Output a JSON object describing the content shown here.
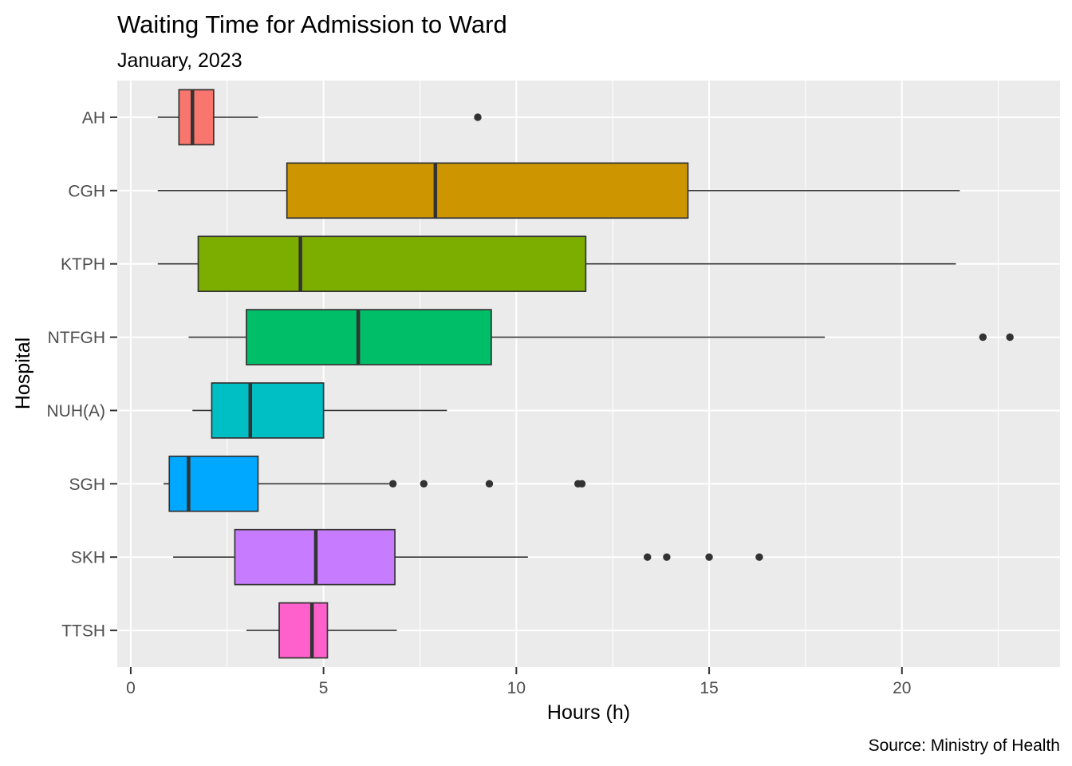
{
  "chart_data": {
    "type": "boxplot",
    "orientation": "horizontal",
    "title": "Waiting Time for Admission to Ward",
    "subtitle": "January, 2023",
    "xlabel": "Hours (h)",
    "ylabel": "Hospital",
    "caption": "Source: Ministry of Health",
    "xlim": [
      -0.35,
      24.1
    ],
    "xticks": [
      0,
      5,
      10,
      15,
      20
    ],
    "grid": true,
    "legend": "none",
    "categories": [
      "AH",
      "CGH",
      "KTPH",
      "NTFGH",
      "NUH(A)",
      "SGH",
      "SKH",
      "TTSH"
    ],
    "boxes": [
      {
        "name": "AH",
        "color": "#F8766D",
        "whisker_low": 0.7,
        "q1": 1.25,
        "median": 1.6,
        "q3": 2.15,
        "whisker_high": 3.3,
        "outliers": [
          9.0
        ]
      },
      {
        "name": "CGH",
        "color": "#CD9600",
        "whisker_low": 0.7,
        "q1": 4.05,
        "median": 7.9,
        "q3": 14.45,
        "whisker_high": 21.5,
        "outliers": []
      },
      {
        "name": "KTPH",
        "color": "#7CAE00",
        "whisker_low": 0.7,
        "q1": 1.75,
        "median": 4.4,
        "q3": 11.8,
        "whisker_high": 21.4,
        "outliers": []
      },
      {
        "name": "NTFGH",
        "color": "#00BE67",
        "whisker_low": 1.5,
        "q1": 3.0,
        "median": 5.9,
        "q3": 9.35,
        "whisker_high": 18.0,
        "outliers": [
          22.1,
          22.8
        ]
      },
      {
        "name": "NUH(A)",
        "color": "#00BFC4",
        "whisker_low": 1.6,
        "q1": 2.1,
        "median": 3.1,
        "q3": 5.0,
        "whisker_high": 8.2,
        "outliers": []
      },
      {
        "name": "SGH",
        "color": "#00A9FF",
        "whisker_low": 0.85,
        "q1": 1.0,
        "median": 1.5,
        "q3": 3.3,
        "whisker_high": 6.7,
        "outliers": [
          6.8,
          7.6,
          9.3,
          11.6,
          11.7
        ]
      },
      {
        "name": "SKH",
        "color": "#C77CFF",
        "whisker_low": 1.1,
        "q1": 2.7,
        "median": 4.8,
        "q3": 6.85,
        "whisker_high": 10.3,
        "outliers": [
          13.4,
          13.9,
          15.0,
          16.3
        ]
      },
      {
        "name": "TTSH",
        "color": "#FF61CC",
        "whisker_low": 3.0,
        "q1": 3.85,
        "median": 4.7,
        "q3": 5.1,
        "whisker_high": 6.9,
        "outliers": []
      }
    ]
  }
}
